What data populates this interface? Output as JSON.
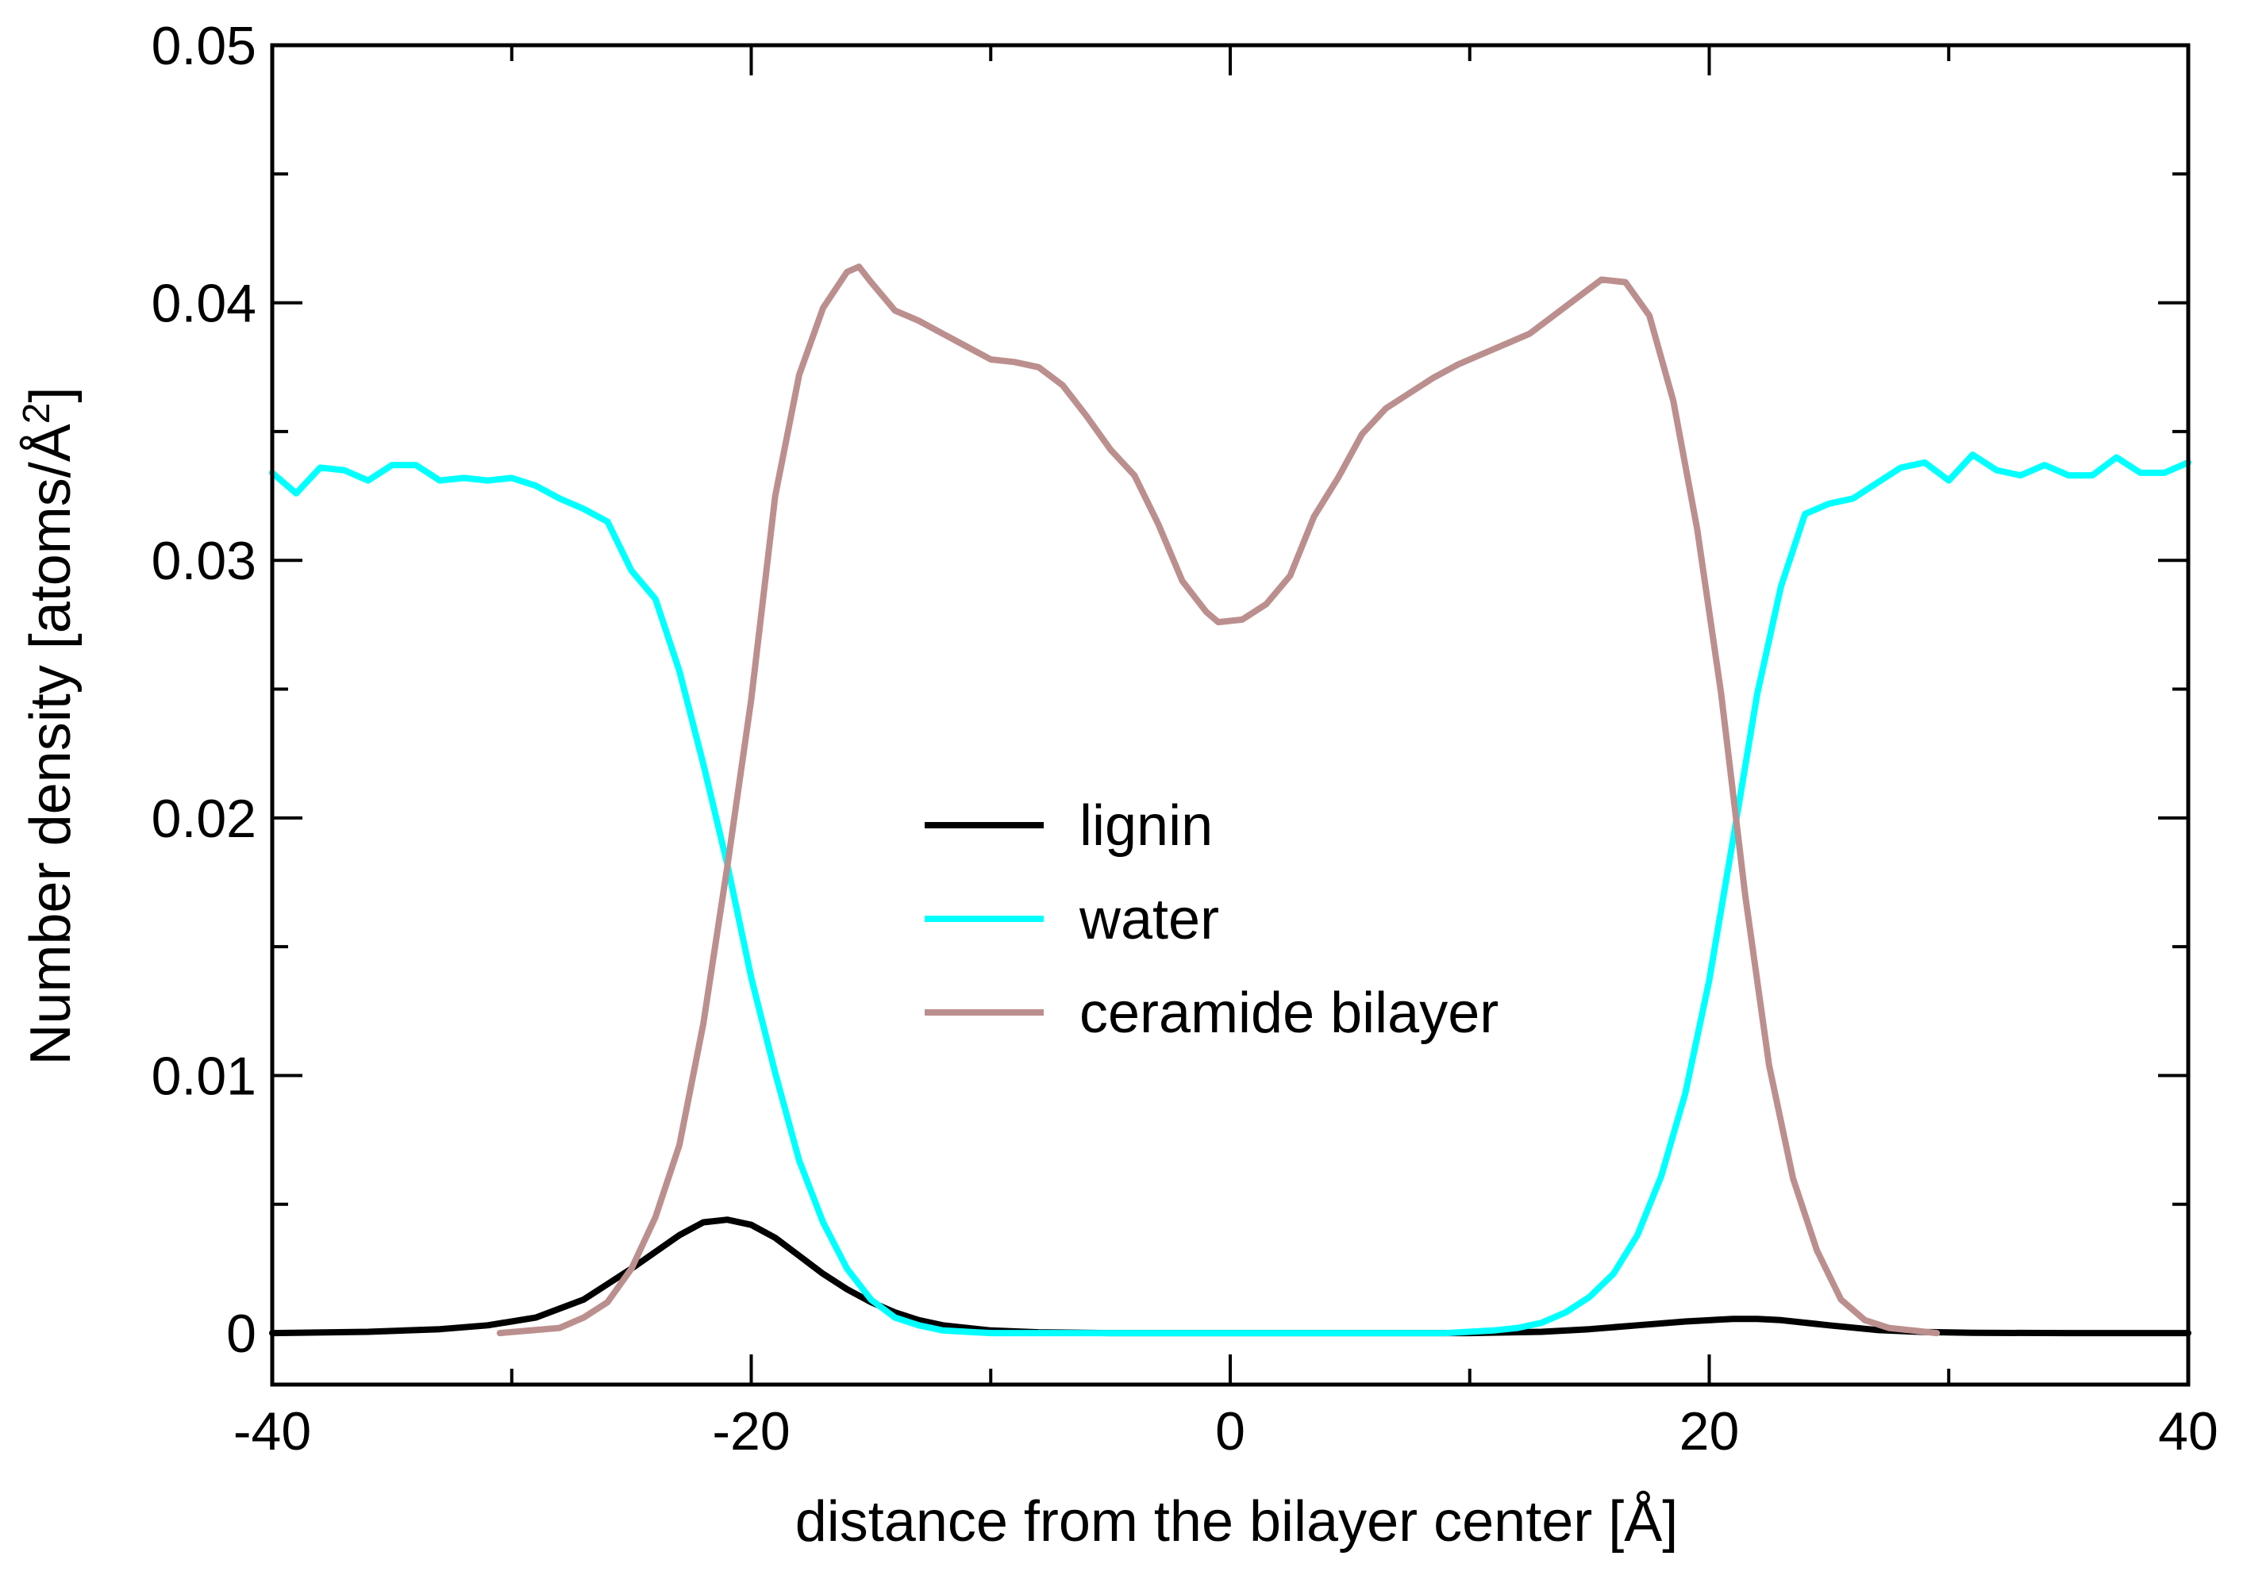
{
  "chart_data": {
    "type": "line",
    "xlabel": "distance from the bilayer center [Å]",
    "ylabel_main": "Number density [atoms/Å",
    "ylabel_sup": "2",
    "ylabel_end": "]",
    "xlim": [
      -40,
      40
    ],
    "ylim": [
      -0.002,
      0.05
    ],
    "x_ticks": [
      -40,
      -20,
      0,
      20,
      40
    ],
    "x_tick_labels": [
      "-40",
      "-20",
      "0",
      "20",
      "40"
    ],
    "y_ticks": [
      0,
      0.01,
      0.02,
      0.03,
      0.04,
      0.05
    ],
    "y_tick_labels": [
      "0",
      "0.01",
      "0.02",
      "0.03",
      "0.04",
      "0.05"
    ],
    "grid": false,
    "legend_position": "center",
    "series": [
      {
        "name": "lignin",
        "color": "#000000",
        "x": [
          -40,
          -36,
          -33,
          -31,
          -29,
          -27,
          -25,
          -23,
          -22,
          -21,
          -20,
          -19,
          -18,
          -17,
          -16,
          -15,
          -14,
          -13,
          -12,
          -10,
          -8,
          -5,
          0,
          5,
          10,
          13,
          15,
          17,
          19,
          21,
          22,
          23,
          25,
          27,
          29,
          31,
          35,
          40
        ],
        "y": [
          0,
          5e-05,
          0.00015,
          0.0003,
          0.0006,
          0.0013,
          0.0025,
          0.0038,
          0.0043,
          0.0044,
          0.0042,
          0.0037,
          0.003,
          0.0023,
          0.0017,
          0.0012,
          0.0008,
          0.0005,
          0.0003,
          0.0001,
          3e-05,
          0,
          0,
          0,
          0,
          5e-05,
          0.00015,
          0.0003,
          0.00045,
          0.00055,
          0.00055,
          0.0005,
          0.0003,
          0.00012,
          4e-05,
          1e-05,
          0,
          0
        ]
      },
      {
        "name": "water",
        "color": "#00ffff",
        "x": [
          -40,
          -39,
          -38,
          -37,
          -36,
          -35,
          -34,
          -33,
          -32,
          -31,
          -30,
          -29,
          -28,
          -27,
          -26,
          -25,
          -24,
          -23,
          -22,
          -21,
          -20,
          -19,
          -18,
          -17,
          -16,
          -15,
          -14,
          -13,
          -12,
          -11,
          -10,
          -8,
          -5,
          0,
          5,
          9,
          11,
          12,
          13,
          14,
          15,
          16,
          17,
          18,
          19,
          20,
          21,
          22,
          23,
          24,
          25,
          26,
          27,
          28,
          29,
          30,
          31,
          32,
          33,
          34,
          35,
          36,
          37,
          38,
          39,
          40
        ],
        "y": [
          0.0334,
          0.0326,
          0.0336,
          0.0335,
          0.0331,
          0.0337,
          0.0337,
          0.0331,
          0.0332,
          0.0331,
          0.0332,
          0.0329,
          0.0324,
          0.032,
          0.0315,
          0.0296,
          0.0285,
          0.0257,
          0.0221,
          0.0182,
          0.0138,
          0.0101,
          0.0067,
          0.0043,
          0.0025,
          0.0013,
          0.0006,
          0.0003,
          0.0001,
          5e-05,
          0,
          0,
          0,
          0,
          0,
          0,
          0.0001,
          0.0002,
          0.0004,
          0.0008,
          0.0014,
          0.0023,
          0.0038,
          0.0061,
          0.0093,
          0.0137,
          0.0192,
          0.0248,
          0.029,
          0.0318,
          0.0322,
          0.0324,
          0.033,
          0.0336,
          0.0338,
          0.0331,
          0.0341,
          0.0335,
          0.0333,
          0.0337,
          0.0333,
          0.0333,
          0.034,
          0.0334,
          0.0334,
          0.0338
        ]
      },
      {
        "name": "ceramide bilayer",
        "color": "#bc8f8f",
        "x": [
          -30.5,
          -28,
          -27,
          -26,
          -25,
          -24,
          -23,
          -22,
          -21,
          -20,
          -19,
          -18,
          -17,
          -16,
          -15.5,
          -15,
          -14,
          -13,
          -12,
          -11,
          -10,
          -9,
          -8,
          -7,
          -6,
          -5,
          -4,
          -3,
          -2,
          -1,
          -0.5,
          0.5,
          1.5,
          2.5,
          3.5,
          4.5,
          5.5,
          6.5,
          7.5,
          8.5,
          9.5,
          10.5,
          11.5,
          12.5,
          13.5,
          14.5,
          15.5,
          16.5,
          17.5,
          18.5,
          19.5,
          20.5,
          21.5,
          22.5,
          23.5,
          24.5,
          25.5,
          26.5,
          27.5,
          29.5
        ],
        "y": [
          0,
          0.0002,
          0.0006,
          0.0012,
          0.0025,
          0.0045,
          0.0073,
          0.012,
          0.0181,
          0.0246,
          0.0325,
          0.0372,
          0.0398,
          0.0412,
          0.0414,
          0.0408,
          0.0397,
          0.0393,
          0.0388,
          0.0383,
          0.0378,
          0.0377,
          0.0375,
          0.0368,
          0.0356,
          0.0343,
          0.0333,
          0.0314,
          0.0292,
          0.028,
          0.0276,
          0.0277,
          0.0283,
          0.0294,
          0.0317,
          0.0332,
          0.0349,
          0.0359,
          0.0365,
          0.0371,
          0.0376,
          0.038,
          0.0384,
          0.0388,
          0.0395,
          0.0402,
          0.0409,
          0.0408,
          0.0395,
          0.0362,
          0.0312,
          0.0248,
          0.017,
          0.0104,
          0.006,
          0.0032,
          0.0013,
          0.0005,
          0.0002,
          0
        ]
      }
    ]
  }
}
